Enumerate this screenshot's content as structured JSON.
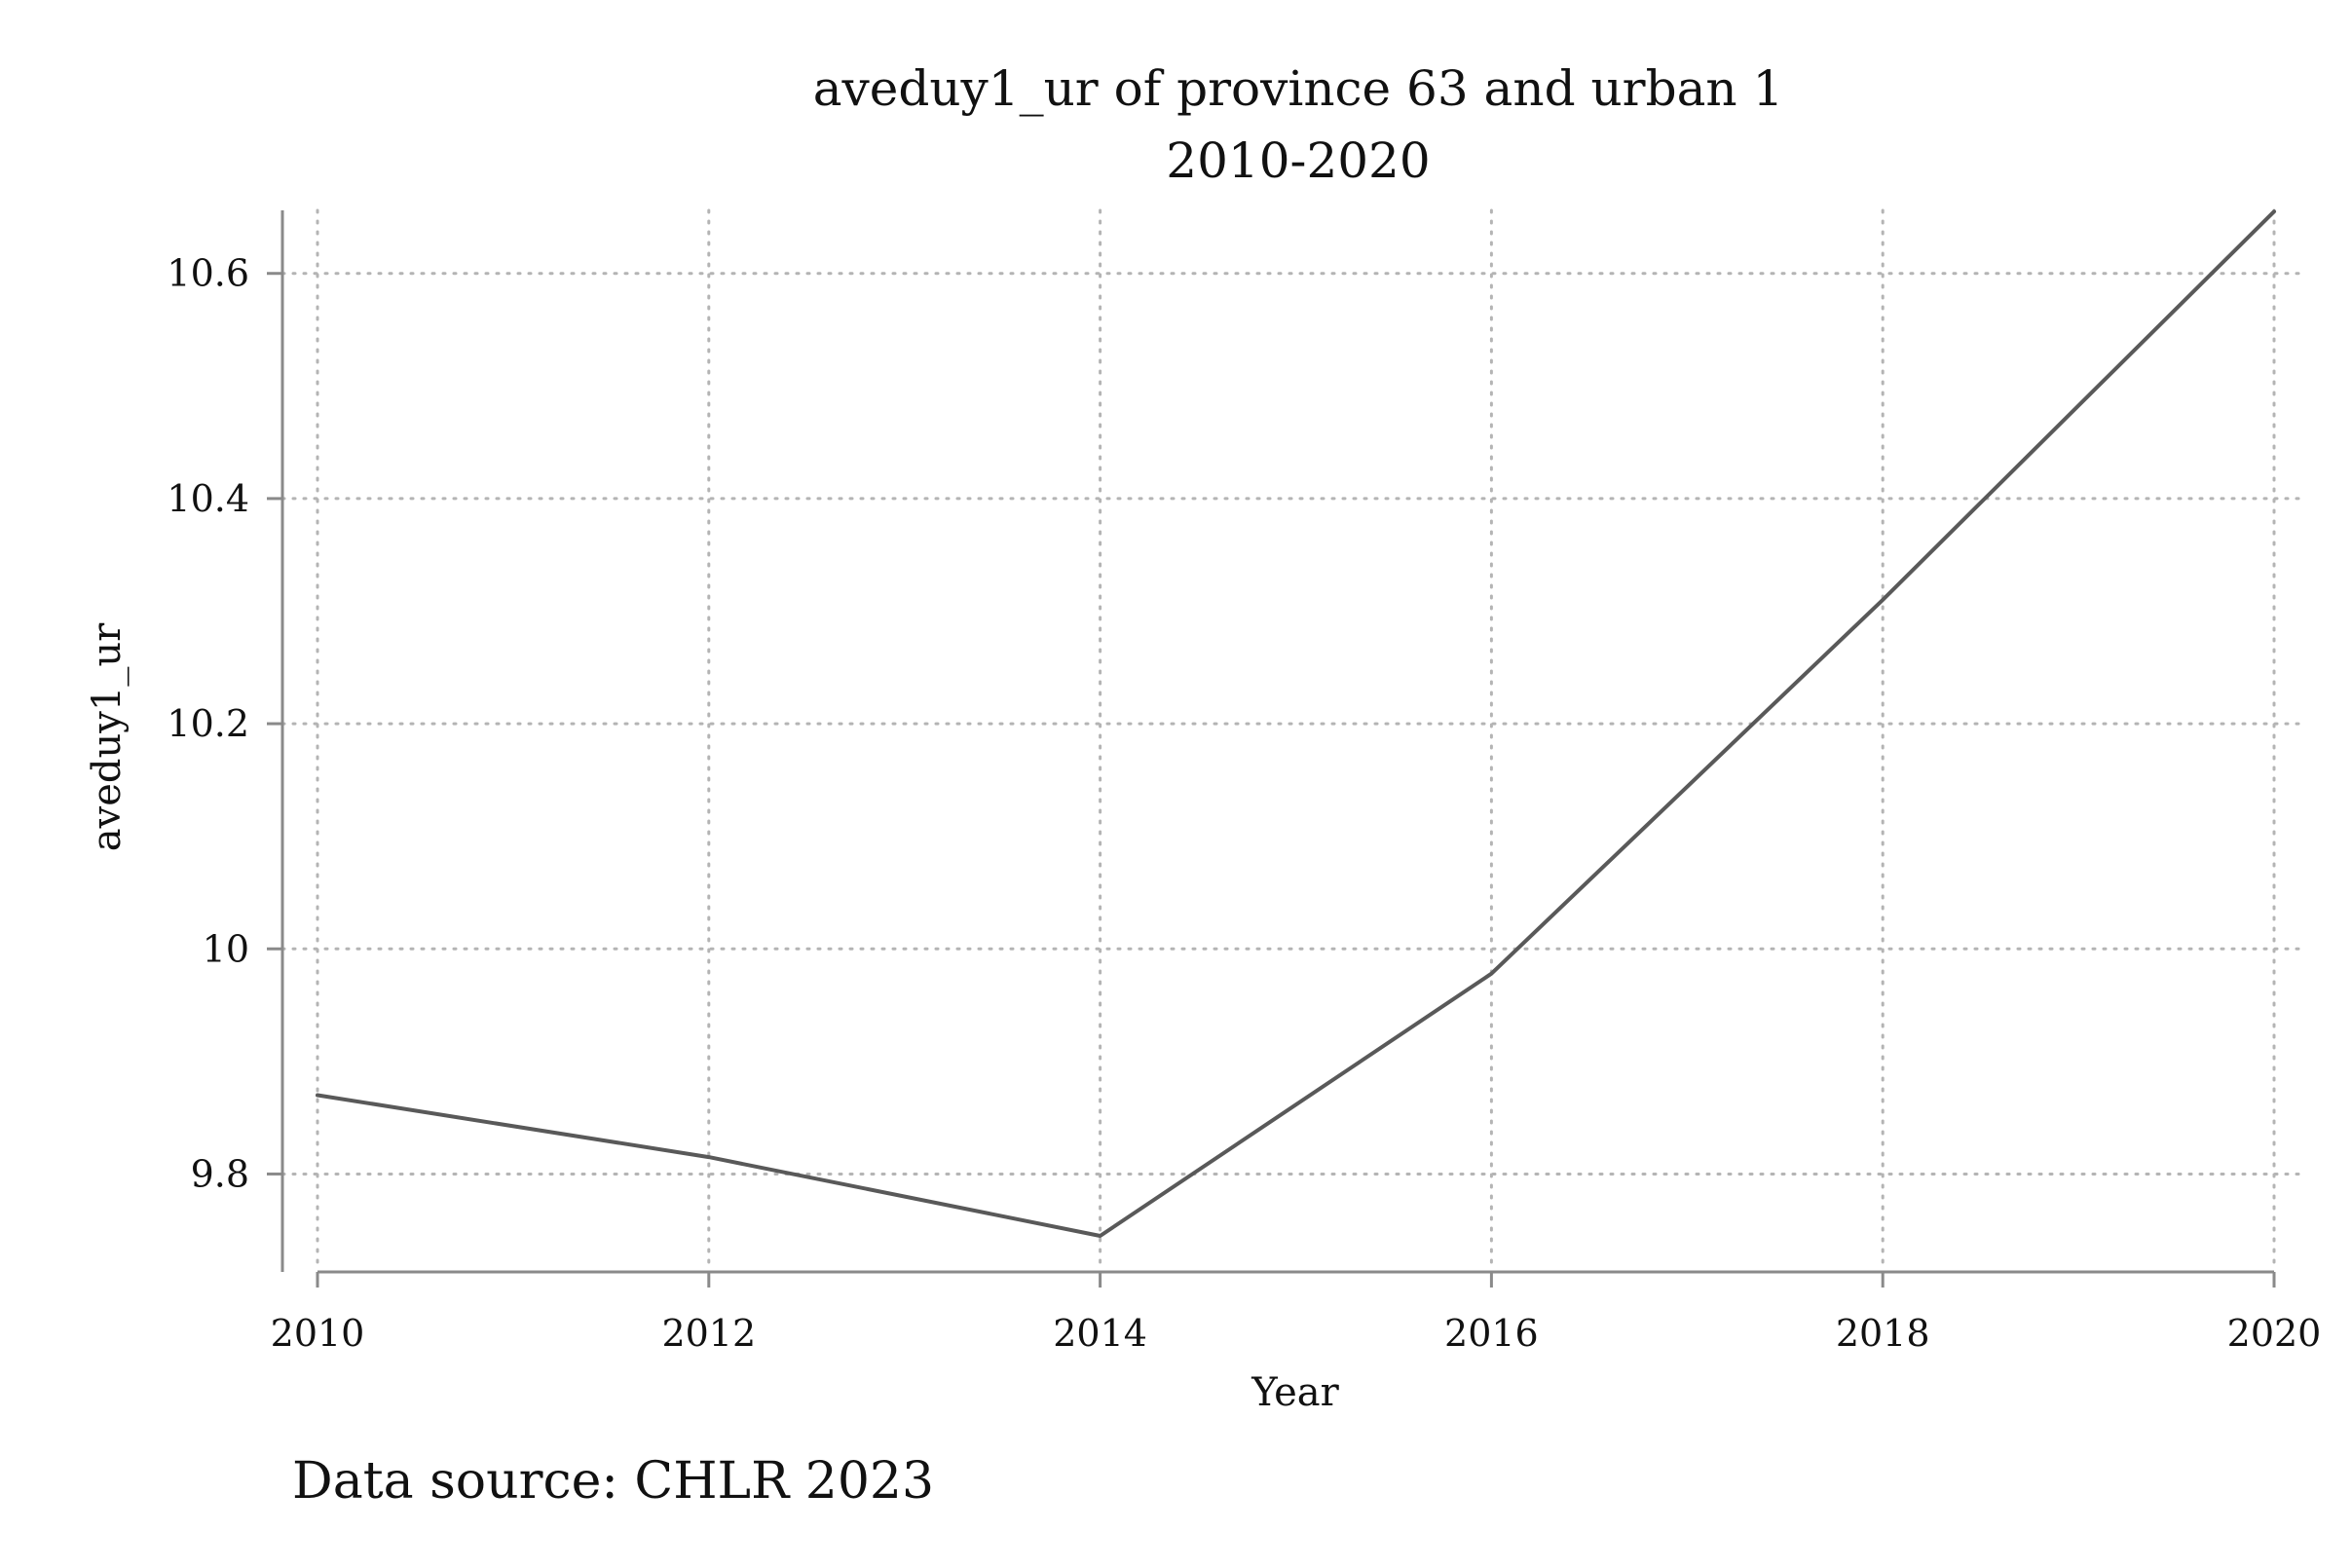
{
  "chart_data": {
    "type": "line",
    "title": "aveduy1_ur of province 63 and urban 1",
    "subtitle": "2010-2020",
    "xlabel": "Year",
    "ylabel": "aveduy1_ur",
    "note": "Data source: CHLR 2023",
    "x": [
      2010,
      2012,
      2014,
      2016,
      2018,
      2020
    ],
    "series": [
      {
        "values": [
          9.87,
          9.815,
          9.745,
          9.978,
          10.31,
          10.655
        ]
      }
    ],
    "xticks": [
      2010,
      2012,
      2014,
      2016,
      2018,
      2020
    ],
    "xtick_labels": [
      "2010",
      "2012",
      "2014",
      "2016",
      "2018",
      "2020"
    ],
    "yticks": [
      9.8,
      10,
      10.2,
      10.4,
      10.6
    ],
    "ytick_labels": [
      "9.8",
      "10",
      "10.2",
      "10.4",
      "10.6"
    ],
    "xlim": [
      2010,
      2020
    ],
    "ylim": [
      9.713,
      10.656
    ],
    "grid": true,
    "line_color": "#595959"
  }
}
